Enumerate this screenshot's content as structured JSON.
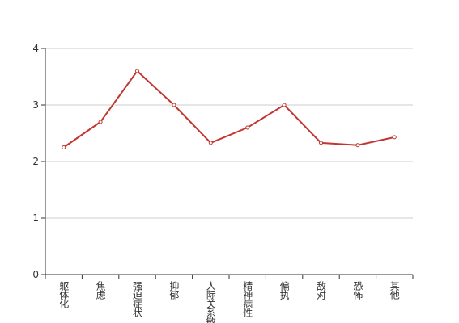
{
  "chart_data": {
    "type": "line",
    "categories": [
      "躯体化",
      "焦虑",
      "强迫症状",
      "抑郁",
      "人际关系敏感",
      "精神病性",
      "偏执",
      "敌对",
      "恐怖",
      "其他"
    ],
    "values": [
      2.25,
      2.7,
      3.6,
      3.0,
      2.33,
      2.6,
      3.0,
      2.33,
      2.29,
      2.43
    ],
    "color": "#c23531",
    "ylim": [
      0,
      4
    ],
    "yticks": [
      0,
      1,
      2,
      3,
      4
    ],
    "grid": true
  }
}
